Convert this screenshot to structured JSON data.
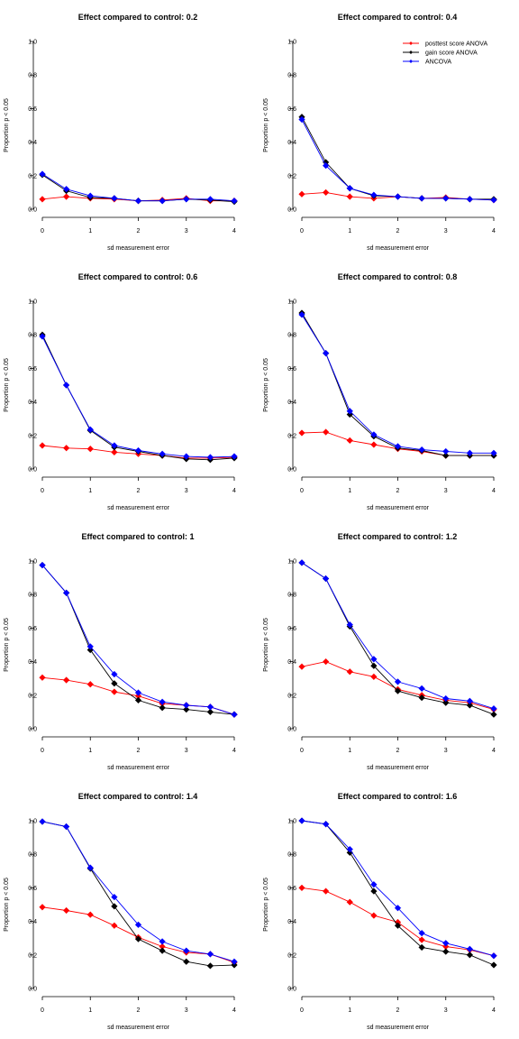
{
  "colors": {
    "posttest": "#ff0000",
    "gain": "#000000",
    "ancova": "#0000ff"
  },
  "chart_data": [
    {
      "type": "line",
      "title": "Effect compared to control: 0.2",
      "xlabel": "sd measurement error",
      "ylabel": "Proportion p < 0.05",
      "x": [
        0,
        0.5,
        1,
        1.5,
        2,
        2.5,
        3,
        3.5,
        4
      ],
      "xticks": [
        "0",
        "1",
        "2",
        "3",
        "4"
      ],
      "yticks": [
        "0.0",
        "0.2",
        "0.4",
        "0.6",
        "0.8",
        "1.0"
      ],
      "xlim": [
        0,
        4
      ],
      "ylim": [
        0,
        1
      ],
      "legend": false,
      "series": [
        {
          "key": "posttest",
          "values": [
            0.06,
            0.075,
            0.065,
            0.06,
            0.05,
            0.055,
            0.065,
            0.05,
            0.05
          ]
        },
        {
          "key": "gain",
          "values": [
            0.205,
            0.11,
            0.07,
            0.065,
            0.05,
            0.05,
            0.06,
            0.055,
            0.045
          ]
        },
        {
          "key": "ancova",
          "values": [
            0.21,
            0.12,
            0.08,
            0.065,
            0.05,
            0.05,
            0.06,
            0.06,
            0.05
          ]
        }
      ]
    },
    {
      "type": "line",
      "title": "Effect compared to control: 0.4",
      "xlabel": "sd measurement error",
      "ylabel": "Proportion p < 0.05",
      "x": [
        0,
        0.5,
        1,
        1.5,
        2,
        2.5,
        3,
        3.5,
        4
      ],
      "xticks": [
        "0",
        "1",
        "2",
        "3",
        "4"
      ],
      "yticks": [
        "0.0",
        "0.2",
        "0.4",
        "0.6",
        "0.8",
        "1.0"
      ],
      "xlim": [
        0,
        4
      ],
      "ylim": [
        0,
        1
      ],
      "legend": true,
      "series": [
        {
          "key": "posttest",
          "name": "posttest score ANOVA",
          "values": [
            0.09,
            0.1,
            0.075,
            0.065,
            0.075,
            0.065,
            0.07,
            0.06,
            0.055
          ]
        },
        {
          "key": "gain",
          "name": "gain score ANOVA",
          "values": [
            0.55,
            0.28,
            0.125,
            0.08,
            0.075,
            0.065,
            0.065,
            0.06,
            0.06
          ]
        },
        {
          "key": "ancova",
          "name": "ANCOVA",
          "values": [
            0.535,
            0.26,
            0.125,
            0.085,
            0.075,
            0.065,
            0.065,
            0.06,
            0.055
          ]
        }
      ]
    },
    {
      "type": "line",
      "title": "Effect compared to control: 0.6",
      "xlabel": "sd measurement error",
      "ylabel": "Proportion p < 0.05",
      "x": [
        0,
        0.5,
        1,
        1.5,
        2,
        2.5,
        3,
        3.5,
        4
      ],
      "xticks": [
        "0",
        "1",
        "2",
        "3",
        "4"
      ],
      "yticks": [
        "0.0",
        "0.2",
        "0.4",
        "0.6",
        "0.8",
        "1.0"
      ],
      "xlim": [
        0,
        4
      ],
      "ylim": [
        0,
        1
      ],
      "legend": false,
      "series": [
        {
          "key": "posttest",
          "values": [
            0.14,
            0.125,
            0.12,
            0.1,
            0.09,
            0.08,
            0.065,
            0.065,
            0.07
          ]
        },
        {
          "key": "gain",
          "values": [
            0.8,
            0.5,
            0.23,
            0.13,
            0.105,
            0.08,
            0.06,
            0.055,
            0.065
          ]
        },
        {
          "key": "ancova",
          "values": [
            0.79,
            0.5,
            0.235,
            0.14,
            0.11,
            0.09,
            0.075,
            0.07,
            0.075
          ]
        }
      ]
    },
    {
      "type": "line",
      "title": "Effect compared to control: 0.8",
      "xlabel": "sd measurement error",
      "ylabel": "Proportion p < 0.05",
      "x": [
        0,
        0.5,
        1,
        1.5,
        2,
        2.5,
        3,
        3.5,
        4
      ],
      "xticks": [
        "0",
        "1",
        "2",
        "3",
        "4"
      ],
      "yticks": [
        "0.0",
        "0.2",
        "0.4",
        "0.6",
        "0.8",
        "1.0"
      ],
      "xlim": [
        0,
        4
      ],
      "ylim": [
        0,
        1
      ],
      "legend": false,
      "series": [
        {
          "key": "posttest",
          "values": [
            0.215,
            0.22,
            0.17,
            0.145,
            0.12,
            0.105,
            0.08,
            0.08,
            0.08
          ]
        },
        {
          "key": "gain",
          "values": [
            0.93,
            0.69,
            0.325,
            0.195,
            0.125,
            0.11,
            0.08,
            0.08,
            0.08
          ]
        },
        {
          "key": "ancova",
          "values": [
            0.92,
            0.69,
            0.345,
            0.205,
            0.135,
            0.115,
            0.105,
            0.095,
            0.095
          ]
        }
      ]
    },
    {
      "type": "line",
      "title": "Effect compared to control: 1",
      "xlabel": "sd measurement error",
      "ylabel": "Proportion p < 0.05",
      "x": [
        0,
        0.5,
        1,
        1.5,
        2,
        2.5,
        3,
        3.5,
        4
      ],
      "xticks": [
        "0",
        "1",
        "2",
        "3",
        "4"
      ],
      "yticks": [
        "0.0",
        "0.2",
        "0.4",
        "0.6",
        "0.8",
        "1.0"
      ],
      "xlim": [
        0,
        4
      ],
      "ylim": [
        0,
        1
      ],
      "legend": false,
      "series": [
        {
          "key": "posttest",
          "values": [
            0.305,
            0.29,
            0.265,
            0.22,
            0.195,
            0.15,
            0.14,
            0.13,
            0.085
          ]
        },
        {
          "key": "gain",
          "values": [
            0.975,
            0.81,
            0.47,
            0.27,
            0.17,
            0.125,
            0.115,
            0.1,
            0.085
          ]
        },
        {
          "key": "ancova",
          "values": [
            0.975,
            0.81,
            0.49,
            0.325,
            0.215,
            0.16,
            0.14,
            0.13,
            0.085
          ]
        }
      ]
    },
    {
      "type": "line",
      "title": "Effect compared to control: 1.2",
      "xlabel": "sd measurement error",
      "ylabel": "Proportion p < 0.05",
      "x": [
        0,
        0.5,
        1,
        1.5,
        2,
        2.5,
        3,
        3.5,
        4
      ],
      "xticks": [
        "0",
        "1",
        "2",
        "3",
        "4"
      ],
      "yticks": [
        "0.0",
        "0.2",
        "0.4",
        "0.6",
        "0.8",
        "1.0"
      ],
      "xlim": [
        0,
        4
      ],
      "ylim": [
        0,
        1
      ],
      "legend": false,
      "series": [
        {
          "key": "posttest",
          "values": [
            0.37,
            0.4,
            0.34,
            0.31,
            0.235,
            0.2,
            0.17,
            0.155,
            0.115
          ]
        },
        {
          "key": "gain",
          "values": [
            0.99,
            0.895,
            0.61,
            0.375,
            0.225,
            0.185,
            0.155,
            0.14,
            0.085
          ]
        },
        {
          "key": "ancova",
          "values": [
            0.99,
            0.895,
            0.62,
            0.415,
            0.28,
            0.24,
            0.18,
            0.165,
            0.12
          ]
        }
      ]
    },
    {
      "type": "line",
      "title": "Effect compared to control: 1.4",
      "xlabel": "sd measurement error",
      "ylabel": "Proportion p < 0.05",
      "x": [
        0,
        0.5,
        1,
        1.5,
        2,
        2.5,
        3,
        3.5,
        4
      ],
      "xticks": [
        "0",
        "1",
        "2",
        "3",
        "4"
      ],
      "yticks": [
        "0.0",
        "0.2",
        "0.4",
        "0.6",
        "0.8",
        "1.0"
      ],
      "xlim": [
        0,
        4
      ],
      "ylim": [
        0,
        1
      ],
      "legend": false,
      "series": [
        {
          "key": "posttest",
          "values": [
            0.485,
            0.465,
            0.44,
            0.375,
            0.305,
            0.25,
            0.215,
            0.205,
            0.155
          ]
        },
        {
          "key": "gain",
          "values": [
            0.995,
            0.965,
            0.715,
            0.49,
            0.295,
            0.225,
            0.16,
            0.135,
            0.14
          ]
        },
        {
          "key": "ancova",
          "values": [
            0.995,
            0.965,
            0.72,
            0.545,
            0.38,
            0.28,
            0.225,
            0.205,
            0.16
          ]
        }
      ]
    },
    {
      "type": "line",
      "title": "Effect compared to control: 1.6",
      "xlabel": "sd measurement error",
      "ylabel": "Proportion p < 0.05",
      "x": [
        0,
        0.5,
        1,
        1.5,
        2,
        2.5,
        3,
        3.5,
        4
      ],
      "xticks": [
        "0",
        "1",
        "2",
        "3",
        "4"
      ],
      "yticks": [
        "0.0",
        "0.2",
        "0.4",
        "0.6",
        "0.8",
        "1.0"
      ],
      "xlim": [
        0,
        4
      ],
      "ylim": [
        0,
        1
      ],
      "legend": false,
      "series": [
        {
          "key": "posttest",
          "values": [
            0.6,
            0.58,
            0.515,
            0.435,
            0.395,
            0.29,
            0.25,
            0.23,
            0.195
          ]
        },
        {
          "key": "gain",
          "values": [
            1.0,
            0.98,
            0.81,
            0.58,
            0.375,
            0.245,
            0.22,
            0.2,
            0.14
          ]
        },
        {
          "key": "ancova",
          "values": [
            1.0,
            0.98,
            0.83,
            0.62,
            0.48,
            0.33,
            0.27,
            0.235,
            0.195
          ]
        }
      ]
    }
  ]
}
